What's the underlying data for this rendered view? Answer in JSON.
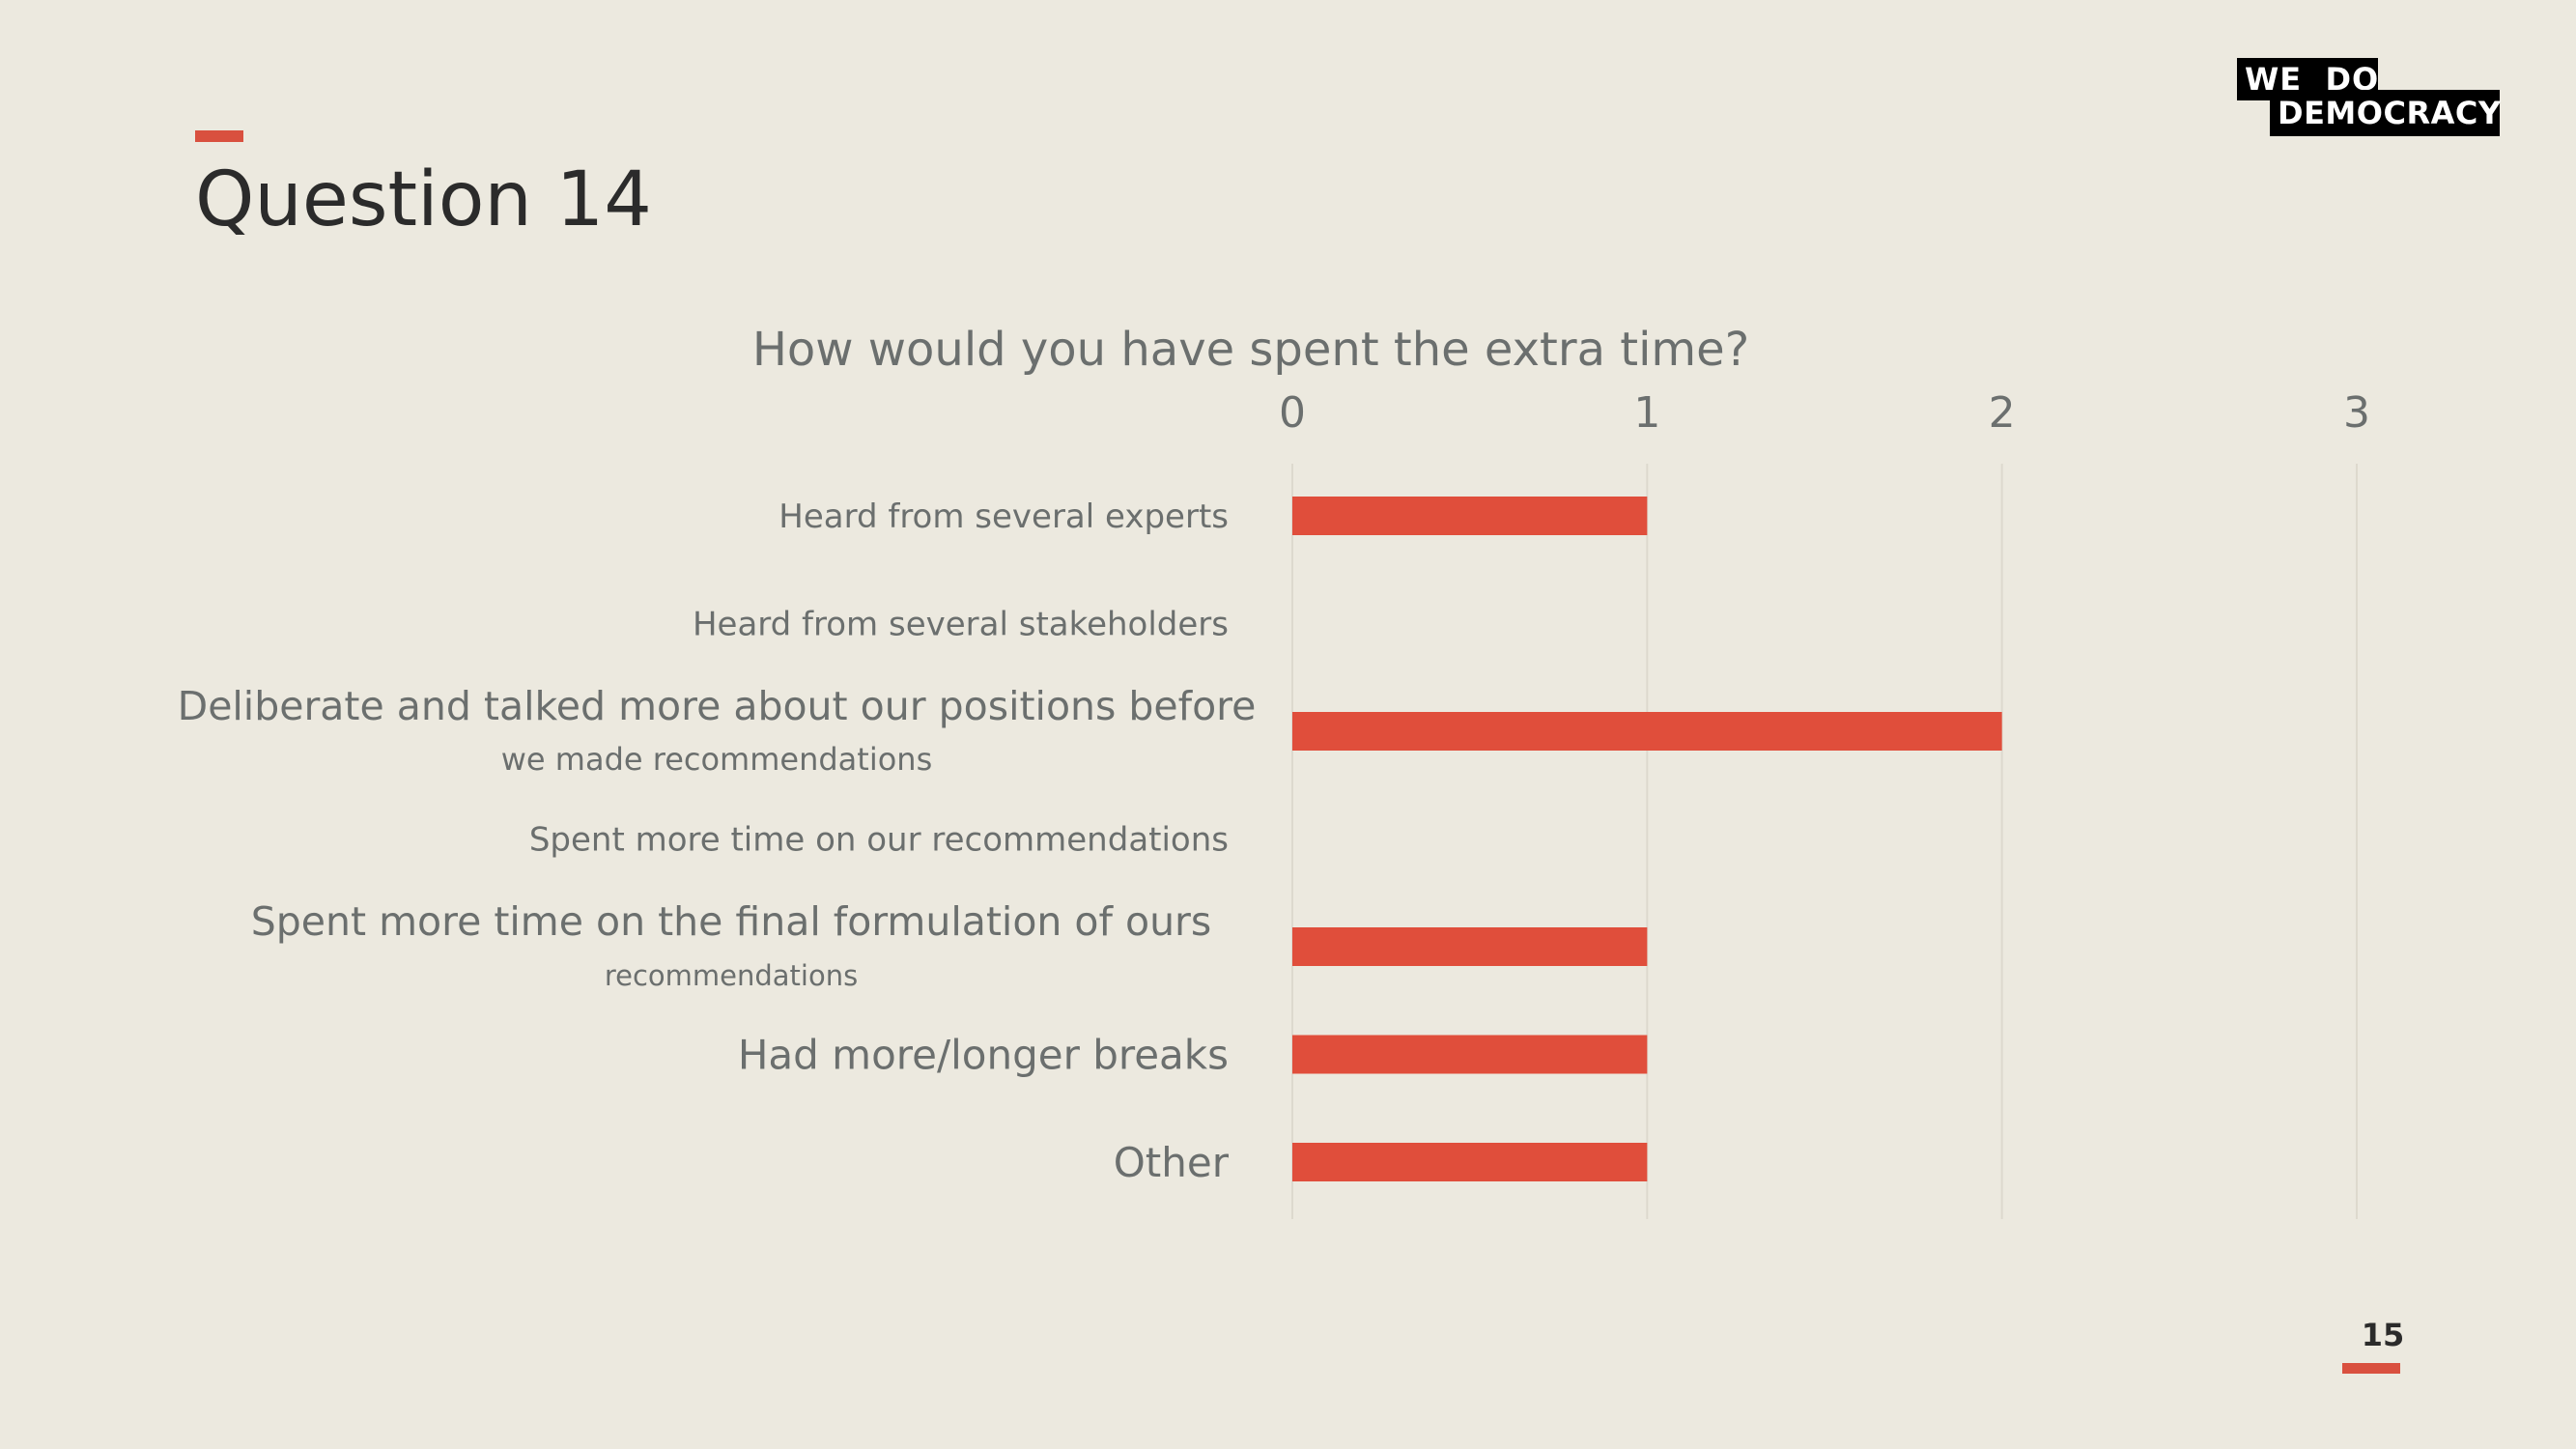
{
  "slide": {
    "title": "Question 14",
    "page_number": "15",
    "logo": {
      "line1": "WE  DO",
      "line2": "DEMOCRACY"
    },
    "accent_color": "#D9503F"
  },
  "chart_data": {
    "type": "bar",
    "orientation": "horizontal",
    "title": "How would you have spent the extra time?",
    "categories": [
      "Heard from several experts",
      "Heard from several stakeholders",
      "Deliberate and talked more about our positions before we made recommendations",
      "Spent more time on our recommendations",
      "Spent more time on the final formulation of ours recommendations",
      "Had more/longer breaks",
      "Other"
    ],
    "category_label_lines": [
      [
        "Heard from several experts"
      ],
      [
        "Heard from several stakeholders"
      ],
      [
        "Deliberate and talked more about our positions before",
        "we made recommendations"
      ],
      [
        "Spent more time on our recommendations"
      ],
      [
        "Spent more time on the final formulation of ours",
        "recommendations"
      ],
      [
        "Had more/longer breaks"
      ],
      [
        "Other"
      ]
    ],
    "values": [
      1,
      0,
      2,
      0,
      1,
      1,
      1
    ],
    "xlim": [
      0,
      3
    ],
    "xticks": [
      "0",
      "1",
      "2",
      "3"
    ],
    "xlabel": "",
    "ylabel": "",
    "grid": true,
    "bar_color": "#E04E3B"
  }
}
